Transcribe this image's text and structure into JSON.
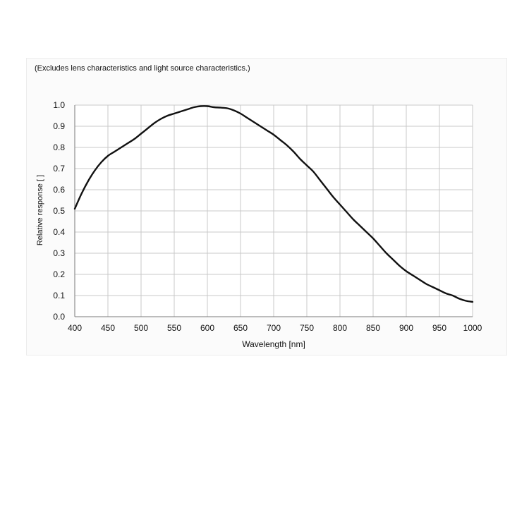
{
  "chart_data": {
    "type": "line",
    "note": "(Excludes lens characteristics and light source characteristics.)",
    "xlabel": "Wavelength [nm]",
    "ylabel": "Relative response [ ]",
    "xlim": [
      400,
      1000
    ],
    "ylim": [
      0.0,
      1.0
    ],
    "grid": true,
    "x_ticks": [
      400,
      450,
      500,
      550,
      600,
      650,
      700,
      750,
      800,
      850,
      900,
      950,
      1000
    ],
    "y_ticks": [
      0.0,
      0.1,
      0.2,
      0.3,
      0.4,
      0.5,
      0.6,
      0.7,
      0.8,
      0.9,
      1.0
    ],
    "x_tick_labels": [
      "400",
      "450",
      "500",
      "550",
      "600",
      "650",
      "700",
      "750",
      "800",
      "850",
      "900",
      "950",
      "1000"
    ],
    "y_tick_labels": [
      "0.0",
      "0.1",
      "0.2",
      "0.3",
      "0.4",
      "0.5",
      "0.6",
      "0.7",
      "0.8",
      "0.9",
      "1.0"
    ],
    "series": [
      {
        "color": "#111111",
        "x": [
          400,
          410,
          420,
          430,
          440,
          450,
          460,
          470,
          480,
          490,
          500,
          510,
          520,
          530,
          540,
          550,
          560,
          570,
          580,
          590,
          600,
          610,
          620,
          630,
          640,
          650,
          660,
          670,
          680,
          690,
          700,
          710,
          720,
          730,
          740,
          750,
          760,
          770,
          780,
          790,
          800,
          810,
          820,
          830,
          840,
          850,
          860,
          870,
          880,
          890,
          900,
          910,
          920,
          930,
          940,
          950,
          960,
          970,
          980,
          990,
          1000
        ],
        "y": [
          0.51,
          0.58,
          0.64,
          0.69,
          0.73,
          0.76,
          0.78,
          0.8,
          0.82,
          0.84,
          0.865,
          0.89,
          0.915,
          0.935,
          0.95,
          0.96,
          0.97,
          0.98,
          0.99,
          0.995,
          0.995,
          0.99,
          0.988,
          0.985,
          0.975,
          0.96,
          0.94,
          0.92,
          0.9,
          0.88,
          0.86,
          0.835,
          0.81,
          0.78,
          0.745,
          0.715,
          0.685,
          0.645,
          0.605,
          0.565,
          0.53,
          0.495,
          0.46,
          0.43,
          0.4,
          0.37,
          0.335,
          0.3,
          0.27,
          0.24,
          0.215,
          0.195,
          0.175,
          0.155,
          0.14,
          0.125,
          0.11,
          0.1,
          0.085,
          0.075,
          0.07
        ]
      }
    ]
  }
}
